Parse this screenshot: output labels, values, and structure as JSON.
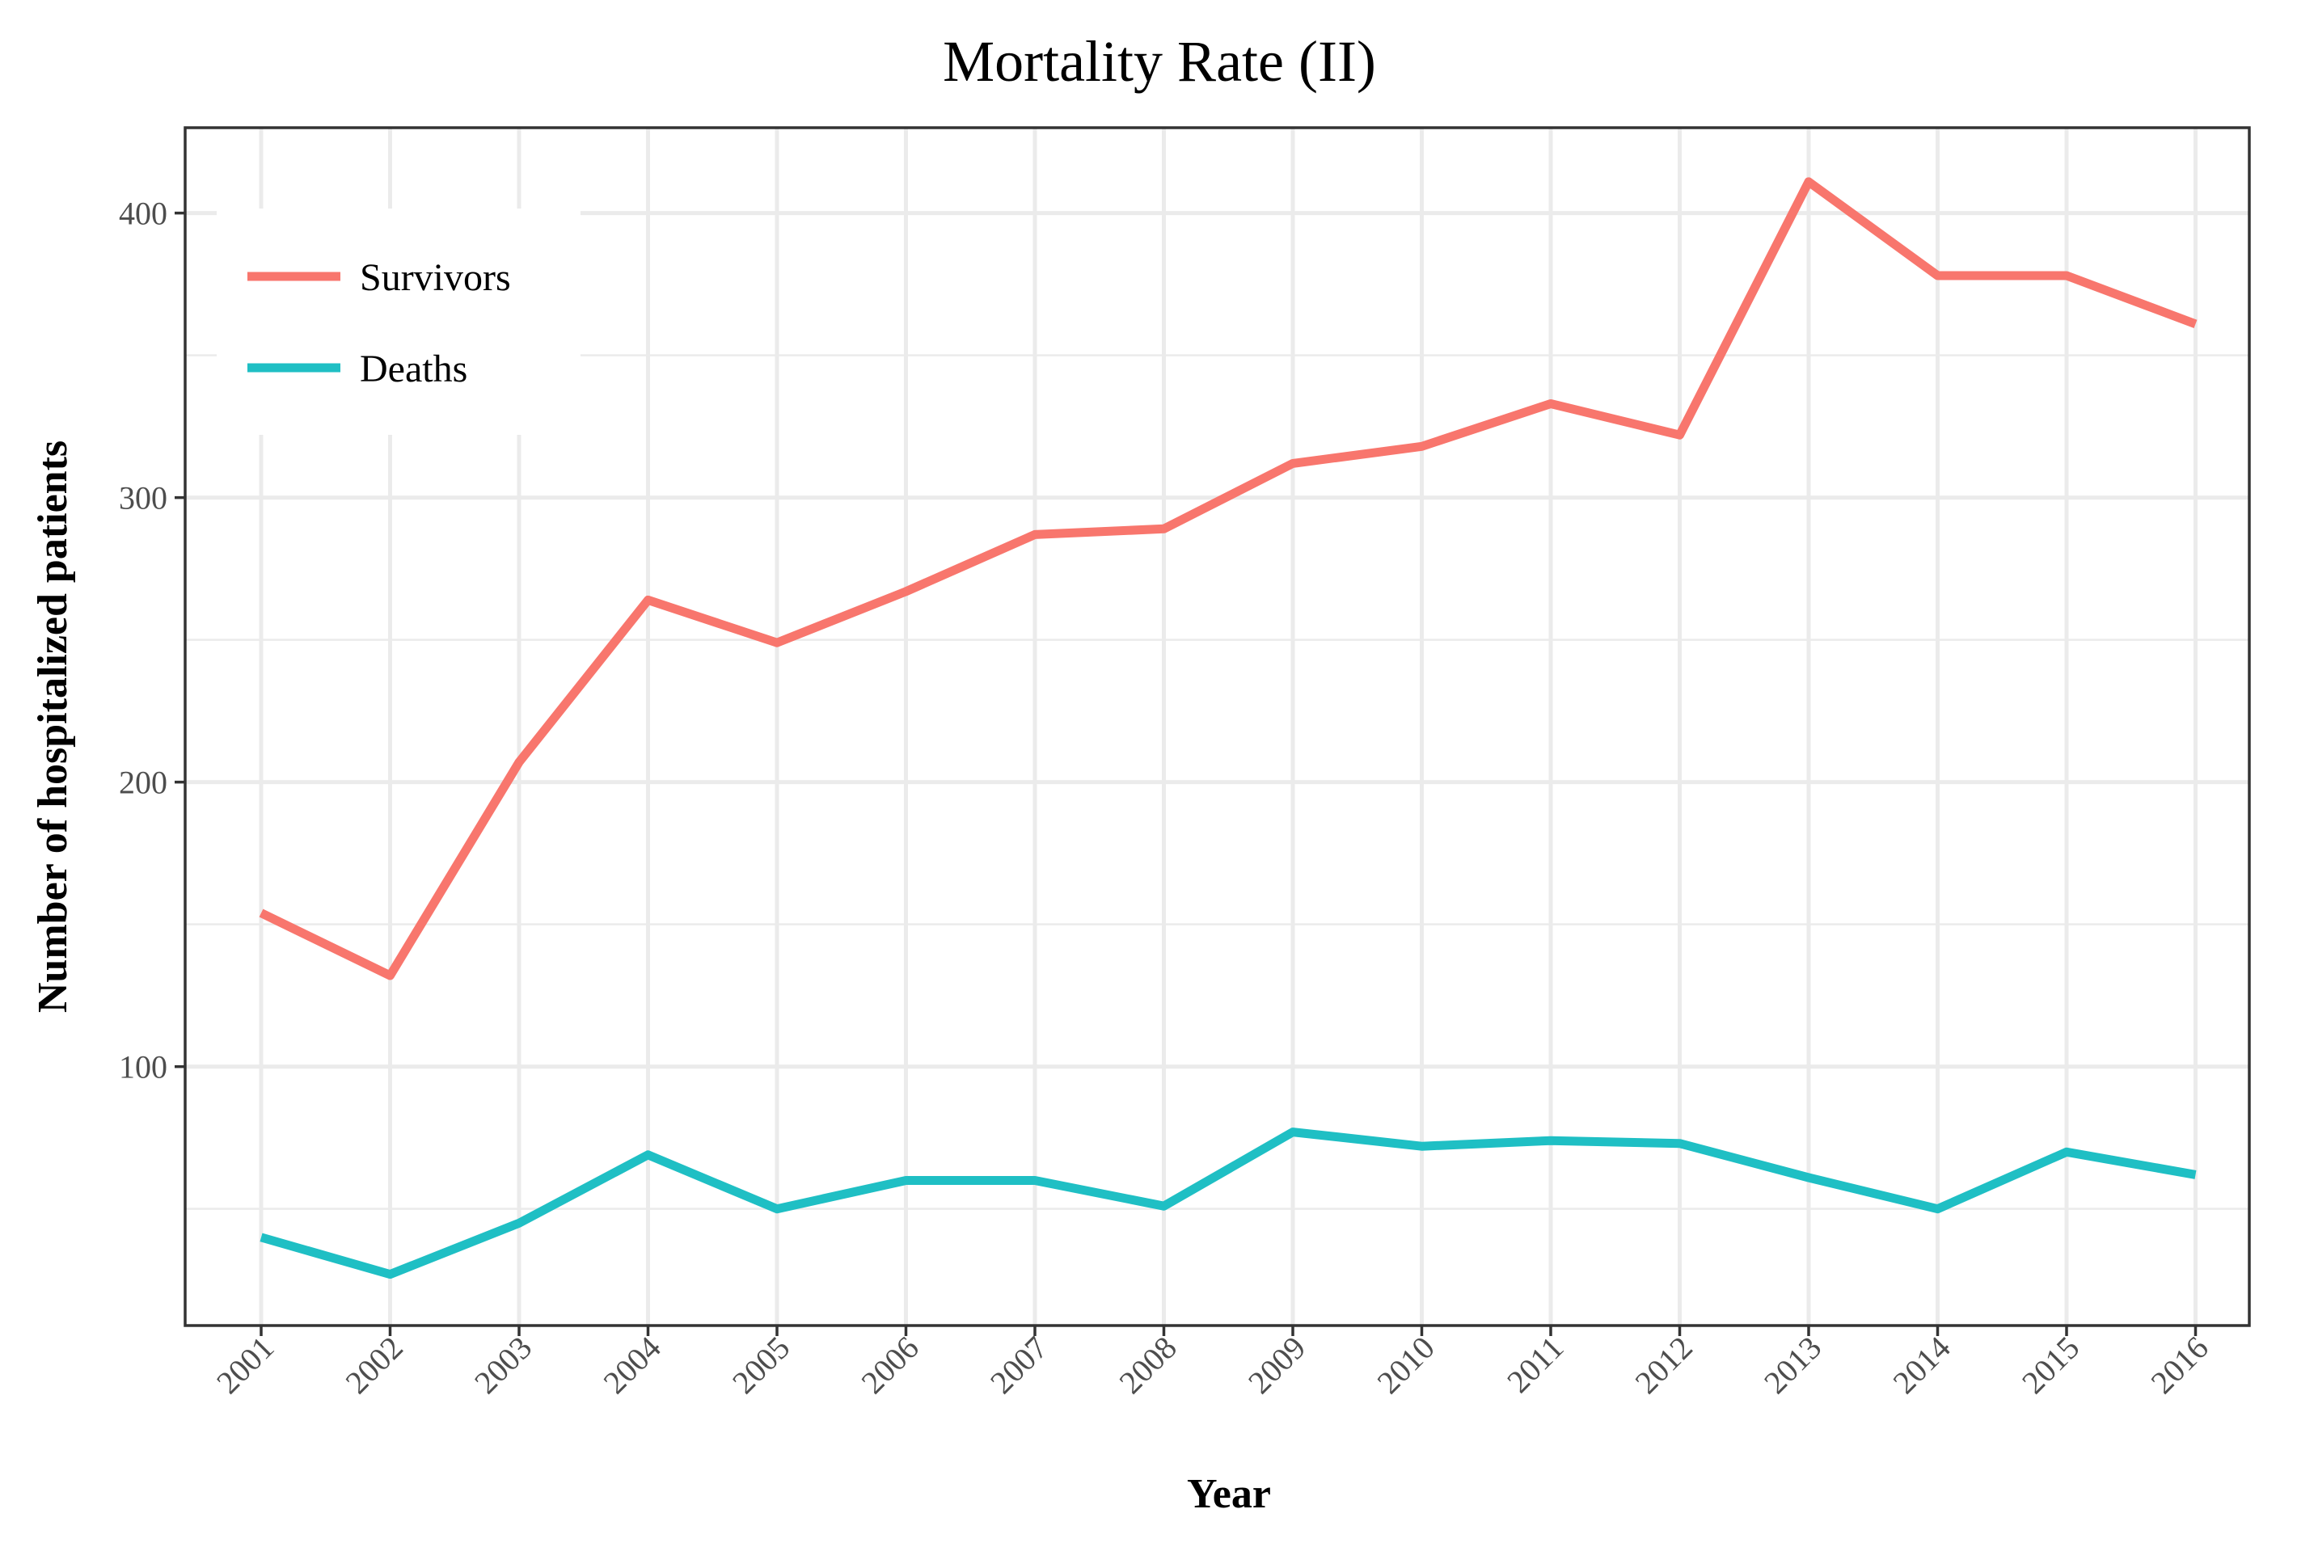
{
  "chart_data": {
    "type": "line",
    "title": "Mortality Rate (II)",
    "xlabel": "Year",
    "ylabel": "Number of hospitalized patients",
    "categories": [
      "2001",
      "2002",
      "2003",
      "2004",
      "2005",
      "2006",
      "2007",
      "2008",
      "2009",
      "2010",
      "2011",
      "2012",
      "2013",
      "2014",
      "2015",
      "2016"
    ],
    "y_ticks": [
      100,
      200,
      300,
      400
    ],
    "ylim": [
      9,
      430
    ],
    "grid": true,
    "legend_position": "top-left",
    "series": [
      {
        "name": "Survivors",
        "color": "#F8766D",
        "values": [
          154,
          132,
          207,
          264,
          249,
          267,
          287,
          289,
          312,
          318,
          333,
          322,
          411,
          378,
          378,
          361
        ]
      },
      {
        "name": "Deaths",
        "color": "#1FBFC4",
        "values": [
          40,
          27,
          45,
          69,
          50,
          60,
          60,
          51,
          77,
          72,
          74,
          73,
          61,
          50,
          70,
          62
        ]
      }
    ]
  }
}
